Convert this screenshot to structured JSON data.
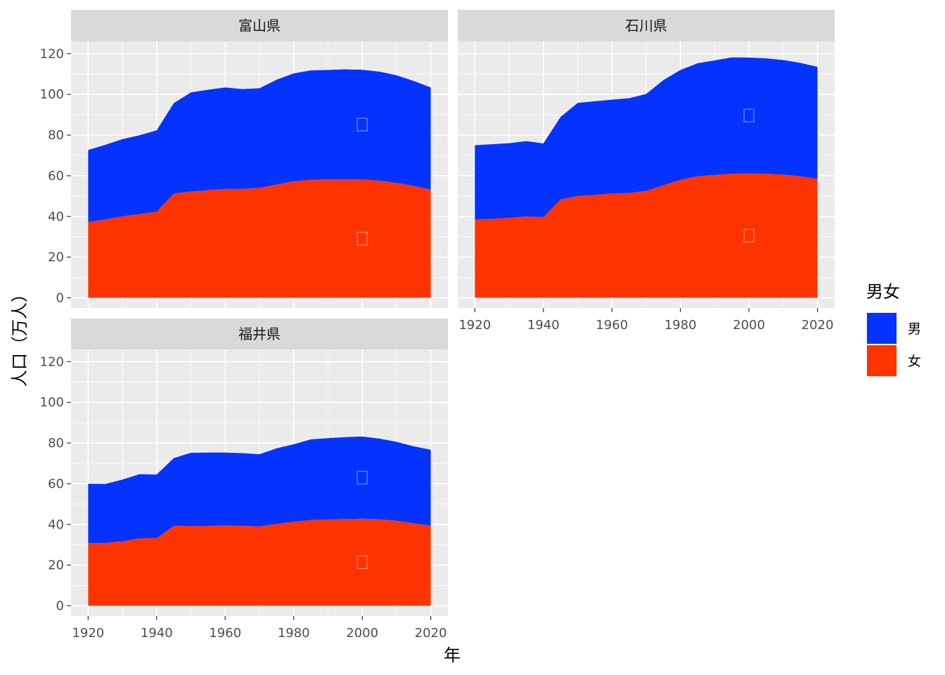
{
  "chart_data": {
    "type": "area",
    "stacked": true,
    "x_label": "年",
    "y_label": "人口（万人）",
    "xlim": [
      1915,
      2025
    ],
    "ylim": [
      -5,
      126
    ],
    "x_ticks": [
      1920,
      1940,
      1960,
      1980,
      2000,
      2020
    ],
    "y_ticks": [
      0,
      20,
      40,
      60,
      80,
      100,
      120
    ],
    "grid": true,
    "legend": {
      "title": "男女",
      "position": "right",
      "entries": [
        {
          "label": "男",
          "color": "#0433FF"
        },
        {
          "label": "女",
          "color": "#FF3300"
        }
      ]
    },
    "x": [
      1920,
      1925,
      1930,
      1935,
      1940,
      1945,
      1950,
      1955,
      1960,
      1965,
      1970,
      1975,
      1980,
      1985,
      1990,
      1995,
      2000,
      2005,
      2010,
      2015,
      2020
    ],
    "panels": [
      {
        "title": "富山県",
        "series": [
          {
            "name": "女",
            "values": [
              37.2,
              38.5,
              40.0,
              41.2,
              42.3,
              51.3,
              52.2,
              52.9,
              53.5,
              53.6,
              54.0,
              55.7,
              57.3,
              58.0,
              58.2,
              58.3,
              58.2,
              57.6,
              56.5,
              55.0,
              53.2
            ]
          },
          {
            "name": "男",
            "values": [
              35.5,
              36.7,
              38.0,
              38.7,
              40.0,
              44.4,
              48.8,
              49.4,
              49.9,
              49.0,
              49.0,
              51.5,
              53.0,
              53.8,
              53.8,
              54.0,
              53.9,
              53.6,
              52.9,
              51.6,
              50.2
            ]
          }
        ]
      },
      {
        "title": "石川県",
        "series": [
          {
            "name": "女",
            "values": [
              38.5,
              38.8,
              39.3,
              40.0,
              39.6,
              48.4,
              50.0,
              50.5,
              51.3,
              51.5,
              52.5,
              55.3,
              58.0,
              59.7,
              60.4,
              61.0,
              61.1,
              61.0,
              60.6,
              59.7,
              58.5
            ]
          },
          {
            "name": "男",
            "values": [
              36.5,
              36.7,
              36.7,
              37.0,
              36.3,
              40.5,
              45.8,
              46.1,
              46.1,
              46.6,
              47.7,
              51.7,
              54.0,
              55.6,
              56.3,
              57.2,
              57.0,
              56.7,
              56.3,
              55.8,
              55.0
            ]
          }
        ]
      },
      {
        "title": "福井県",
        "series": [
          {
            "name": "女",
            "values": [
              30.8,
              30.9,
              31.7,
              33.2,
              33.3,
              39.3,
              39.2,
              39.2,
              39.5,
              39.3,
              39.0,
              40.3,
              41.3,
              42.2,
              42.4,
              42.6,
              42.8,
              42.5,
              41.8,
              40.6,
              39.4
            ]
          },
          {
            "name": "男",
            "values": [
              29.2,
              29.0,
              30.3,
              31.5,
              31.2,
              33.3,
              36.0,
              36.1,
              35.8,
              35.7,
              35.5,
              37.1,
              38.1,
              39.6,
              40.0,
              40.3,
              40.4,
              39.7,
              38.8,
              37.8,
              37.3
            ]
          }
        ]
      }
    ]
  }
}
